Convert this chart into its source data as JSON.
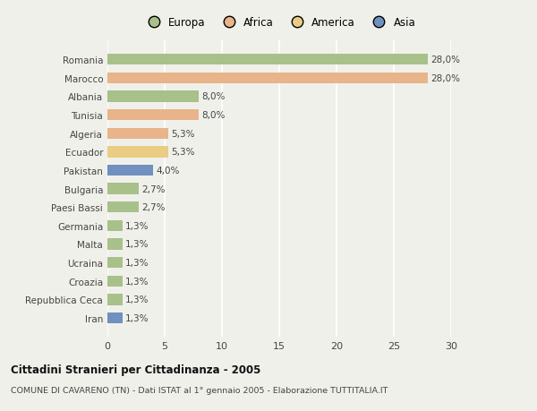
{
  "categories": [
    "Romania",
    "Marocco",
    "Albania",
    "Tunisia",
    "Algeria",
    "Ecuador",
    "Pakistan",
    "Bulgaria",
    "Paesi Bassi",
    "Germania",
    "Malta",
    "Ucraina",
    "Croazia",
    "Repubblica Ceca",
    "Iran"
  ],
  "values": [
    28.0,
    28.0,
    8.0,
    8.0,
    5.3,
    5.3,
    4.0,
    2.7,
    2.7,
    1.3,
    1.3,
    1.3,
    1.3,
    1.3,
    1.3
  ],
  "bar_colors": [
    "#a8c08a",
    "#e8b48a",
    "#a8c08a",
    "#e8b48a",
    "#e8b48a",
    "#eacc82",
    "#7090bf",
    "#a8c08a",
    "#a8c08a",
    "#a8c08a",
    "#a8c08a",
    "#a8c08a",
    "#a8c08a",
    "#a8c08a",
    "#7090bf"
  ],
  "labels": [
    "28,0%",
    "28,0%",
    "8,0%",
    "8,0%",
    "5,3%",
    "5,3%",
    "4,0%",
    "2,7%",
    "2,7%",
    "1,3%",
    "1,3%",
    "1,3%",
    "1,3%",
    "1,3%",
    "1,3%"
  ],
  "legend": {
    "Europa": "#a8c08a",
    "Africa": "#e8b48a",
    "America": "#eacc82",
    "Asia": "#7090bf"
  },
  "xlim": [
    0,
    30
  ],
  "xticks": [
    0,
    5,
    10,
    15,
    20,
    25,
    30
  ],
  "title": "Cittadini Stranieri per Cittadinanza - 2005",
  "subtitle": "COMUNE DI CAVARENO (TN) - Dati ISTAT al 1° gennaio 2005 - Elaborazione TUTTITALIA.IT",
  "background_color": "#f0f0eb",
  "grid_color": "#ffffff",
  "bar_height": 0.6,
  "label_fontsize": 7.5,
  "ytick_fontsize": 7.5,
  "xtick_fontsize": 8.0
}
